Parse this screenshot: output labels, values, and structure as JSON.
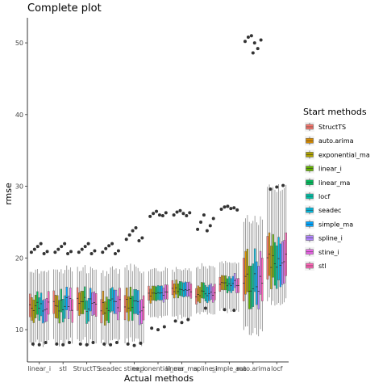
{
  "chart_data": {
    "type": "boxplot",
    "title": "Complete plot",
    "xlabel": "Actual methods",
    "ylabel": "rmse",
    "ylim": [
      5.5,
      53.5
    ],
    "yticks": [
      10,
      20,
      30,
      40,
      50
    ],
    "grid": false,
    "legend_position": "right",
    "legend_title": "Start methods",
    "categories": [
      "linear_i",
      "stl",
      "StructTS",
      "seadec",
      "stine_i",
      "exponential_ma",
      "linear_ma",
      "spline_i",
      "simple_ma",
      "auto.arima",
      "locf"
    ],
    "series": [
      {
        "name": "StructTS",
        "color": "#F8766D"
      },
      {
        "name": "auto.arima",
        "color": "#DB8E00"
      },
      {
        "name": "exponential_ma",
        "color": "#AEA200"
      },
      {
        "name": "linear_i",
        "color": "#64B200"
      },
      {
        "name": "linear_ma",
        "color": "#00BD5C"
      },
      {
        "name": "locf",
        "color": "#00C1A7"
      },
      {
        "name": "seadec",
        "color": "#00BADE"
      },
      {
        "name": "simple_ma",
        "color": "#00A6FF"
      },
      {
        "name": "spline_i",
        "color": "#B385FF"
      },
      {
        "name": "stine_i",
        "color": "#EF67EB"
      },
      {
        "name": "stl",
        "color": "#FF63B6"
      }
    ],
    "groups": [
      {
        "category": "linear_i",
        "q1": 11.8,
        "median": 13.5,
        "q3": 15.0,
        "lo": 8.5,
        "hi": 18.0,
        "spread": 1.0,
        "out_hi": [
          20.8,
          21.2,
          21.6,
          22.0,
          20.6,
          20.9
        ],
        "out_lo": [
          8.0,
          7.9,
          8.2
        ]
      },
      {
        "category": "stl",
        "q1": 11.8,
        "median": 13.5,
        "q3": 15.0,
        "lo": 8.5,
        "hi": 18.0,
        "spread": 1.0,
        "out_hi": [
          20.8,
          21.2,
          21.6,
          22.0,
          20.6,
          20.9
        ],
        "out_lo": [
          8.0,
          7.9,
          8.2
        ]
      },
      {
        "category": "StructTS",
        "q1": 11.8,
        "median": 13.5,
        "q3": 15.0,
        "lo": 8.5,
        "hi": 18.0,
        "spread": 1.0,
        "out_hi": [
          20.8,
          21.2,
          21.6,
          22.0,
          20.6,
          21.0
        ],
        "out_lo": [
          8.0,
          7.9,
          8.2
        ]
      },
      {
        "category": "seadec",
        "q1": 11.6,
        "median": 13.3,
        "q3": 14.9,
        "lo": 8.5,
        "hi": 17.8,
        "spread": 1.0,
        "out_hi": [
          20.8,
          21.3,
          21.7,
          22.0,
          20.6,
          21.0
        ],
        "out_lo": [
          8.0,
          7.9,
          8.2
        ]
      },
      {
        "category": "stine_i",
        "q1": 11.6,
        "median": 13.4,
        "q3": 15.0,
        "lo": 8.5,
        "hi": 18.2,
        "spread": 1.0,
        "out_hi": [
          22.6,
          23.2,
          23.8,
          24.2,
          22.4,
          22.8
        ],
        "out_lo": [
          8.0,
          7.8,
          8.1
        ]
      },
      {
        "category": "exponential_ma",
        "q1": 14.0,
        "median": 15.0,
        "q3": 16.0,
        "lo": 12.0,
        "hi": 18.0,
        "spread": 0.4,
        "out_hi": [
          25.8,
          26.2,
          26.5,
          26.0,
          25.9,
          26.3
        ],
        "out_lo": [
          10.2,
          10.0,
          10.4
        ]
      },
      {
        "category": "linear_ma",
        "q1": 14.6,
        "median": 15.5,
        "q3": 16.6,
        "lo": 12.0,
        "hi": 18.0,
        "spread": 0.4,
        "out_hi": [
          26.0,
          26.4,
          26.6,
          26.2,
          25.9,
          26.3
        ],
        "out_lo": [
          11.2,
          11.0,
          11.4
        ]
      },
      {
        "category": "spline_i",
        "q1": 14.0,
        "median": 15.0,
        "q3": 16.2,
        "lo": 12.5,
        "hi": 18.5,
        "spread": 0.5,
        "out_hi": [
          24.0,
          25.0,
          26.0,
          23.8,
          24.5,
          25.5
        ],
        "out_lo": [
          13.0
        ]
      },
      {
        "category": "simple_ma",
        "q1": 15.5,
        "median": 16.5,
        "q3": 17.5,
        "lo": 13.0,
        "hi": 19.0,
        "spread": 0.4,
        "out_hi": [
          26.8,
          27.1,
          27.2,
          26.9,
          27.0,
          26.7
        ],
        "out_lo": [
          12.8,
          12.7
        ]
      },
      {
        "category": "auto.arima",
        "q1": 14.0,
        "median": 16.5,
        "q3": 20.0,
        "lo": 10.0,
        "hi": 25.0,
        "spread": 1.8,
        "out_hi": [
          50.2,
          50.8,
          51.0,
          50.0,
          49.2,
          50.4
        ],
        "out_lo": [
          48.6
        ]
      },
      {
        "category": "locf",
        "q1": 16.5,
        "median": 19.5,
        "q3": 22.5,
        "lo": 14.0,
        "hi": 29.5,
        "spread": 1.2,
        "out_hi": [
          29.6,
          29.9,
          30.1
        ],
        "out_lo": []
      }
    ]
  }
}
